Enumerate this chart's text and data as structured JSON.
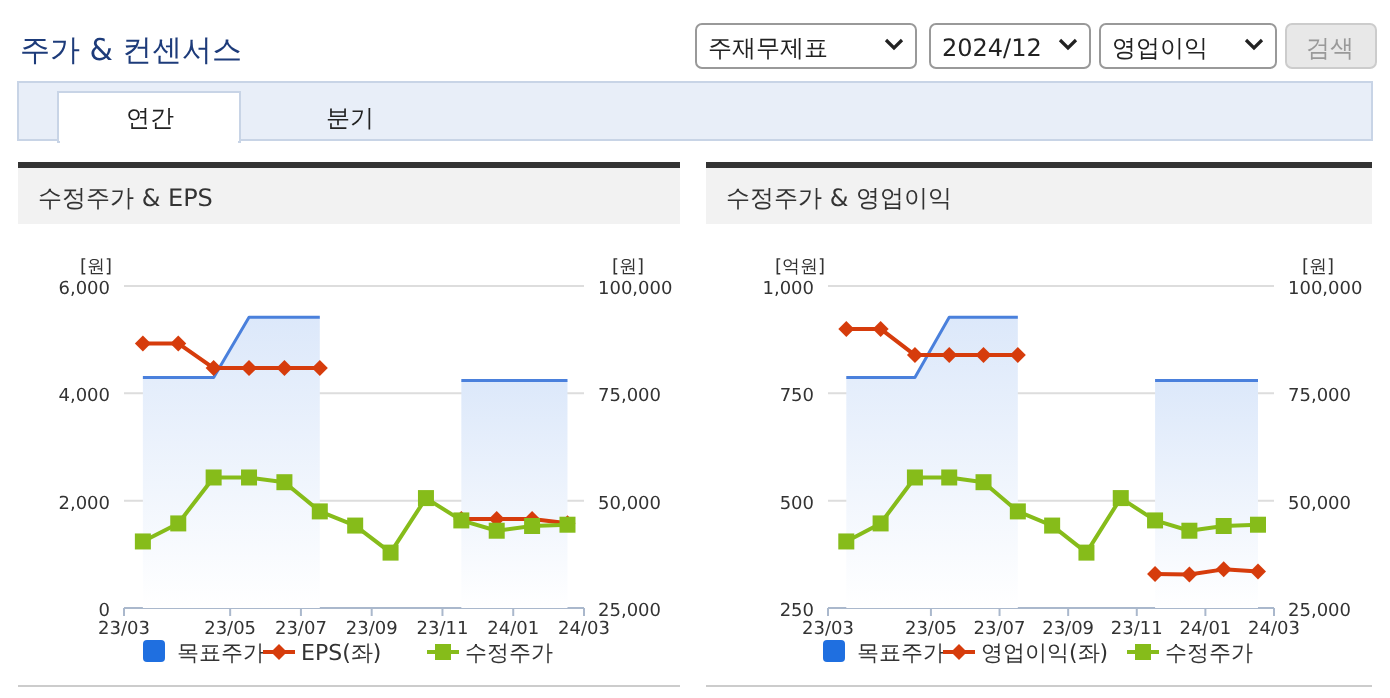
{
  "chart_data": [
    {
      "type": "other",
      "title": "주가 & 컨센서스",
      "annotations": [
        "주재무제표",
        "2024/12",
        "영업이익",
        "검색",
        "연간",
        "분기"
      ]
    },
    {
      "type": "line",
      "title": "수정주가 & EPS",
      "ylabel": "[원]",
      "y2label": "[원]",
      "x": [
        "2023-03",
        "2023-04",
        "2023-05",
        "2023-06",
        "2023-07",
        "2023-08",
        "2023-09",
        "2023-10",
        "2023-11",
        "2023-12",
        "2024-01",
        "2024-02",
        "2024-03"
      ],
      "xlim": [
        "2023-02-15",
        "2024-03-15"
      ],
      "xticks": [
        {
          "value": "2023-02-15",
          "label": "23/03"
        },
        {
          "value": "2023-05-15",
          "label": "23/05"
        },
        {
          "value": "2023-07-15",
          "label": "23/07"
        },
        {
          "value": "2023-09-15",
          "label": "23/09"
        },
        {
          "value": "2023-11-15",
          "label": "23/11"
        },
        {
          "value": "2024-01-15",
          "label": "24/01"
        },
        {
          "value": "2024-03-15",
          "label": "24/03"
        }
      ],
      "ylim": [
        0,
        6000
      ],
      "yticks": [
        {
          "value": 0,
          "label": "0"
        },
        {
          "value": 2000,
          "label": "2,000"
        },
        {
          "value": 4000,
          "label": "4,000"
        },
        {
          "value": 6000,
          "label": "6,000"
        }
      ],
      "y2lim": [
        25000,
        100000
      ],
      "y2ticks": [
        {
          "value": 25000,
          "label": "25,000"
        },
        {
          "value": 50000,
          "label": "50,000"
        },
        {
          "value": 75000,
          "label": "75,000"
        },
        {
          "value": 100000,
          "label": "100,000"
        }
      ],
      "grid": "y",
      "legend": "bottom",
      "series": [
        {
          "name": "목표주가",
          "type": "area",
          "axis": "y2",
          "color": "#4a80dc",
          "values": [
            78700,
            78700,
            78700,
            92700,
            92700,
            92700,
            null,
            null,
            null,
            78000,
            78000,
            78000,
            78000
          ]
        },
        {
          "name": "EPS(좌)",
          "type": "line",
          "color": "#d63c0c",
          "marker": "diamond",
          "values": [
            4930,
            4930,
            4470,
            4470,
            4470,
            4470,
            null,
            null,
            null,
            1660,
            1660,
            1660,
            1580
          ]
        },
        {
          "name": "수정주가",
          "type": "line",
          "axis": "y2",
          "color": "#86bc1a",
          "marker": "square",
          "values": [
            40500,
            44700,
            55400,
            55400,
            54300,
            47500,
            44200,
            37900,
            50600,
            45400,
            43000,
            44100,
            44400
          ]
        }
      ]
    },
    {
      "type": "line",
      "title": "수정주가 & 영업이익",
      "ylabel": "[억원]",
      "y2label": "[원]",
      "x": [
        "2023-03",
        "2023-04",
        "2023-05",
        "2023-06",
        "2023-07",
        "2023-08",
        "2023-09",
        "2023-10",
        "2023-11",
        "2023-12",
        "2024-01",
        "2024-02",
        "2024-03"
      ],
      "xlim": [
        "2023-02-15",
        "2024-03-15"
      ],
      "xticks": [
        {
          "value": "2023-02-15",
          "label": "23/03"
        },
        {
          "value": "2023-05-15",
          "label": "23/05"
        },
        {
          "value": "2023-07-15",
          "label": "23/07"
        },
        {
          "value": "2023-09-15",
          "label": "23/09"
        },
        {
          "value": "2023-11-15",
          "label": "23/11"
        },
        {
          "value": "2024-01-15",
          "label": "24/01"
        },
        {
          "value": "2024-03-15",
          "label": "24/03"
        }
      ],
      "ylim": [
        250,
        1000
      ],
      "yticks": [
        {
          "value": 250,
          "label": "250"
        },
        {
          "value": 500,
          "label": "500"
        },
        {
          "value": 750,
          "label": "750"
        },
        {
          "value": 1000,
          "label": "1,000"
        }
      ],
      "y2lim": [
        25000,
        100000
      ],
      "y2ticks": [
        {
          "value": 25000,
          "label": "25,000"
        },
        {
          "value": 50000,
          "label": "50,000"
        },
        {
          "value": 75000,
          "label": "75,000"
        },
        {
          "value": 100000,
          "label": "100,000"
        }
      ],
      "grid": "y",
      "legend": "bottom",
      "series": [
        {
          "name": "목표주가",
          "type": "area",
          "axis": "y2",
          "color": "#4a80dc",
          "values": [
            78700,
            78700,
            78700,
            92700,
            92700,
            92700,
            null,
            null,
            null,
            78000,
            78000,
            78000,
            78000
          ]
        },
        {
          "name": "영업이익(좌)",
          "type": "line",
          "color": "#d63c0c",
          "marker": "diamond",
          "values": [
            900,
            900,
            839,
            839,
            839,
            839,
            null,
            null,
            null,
            329,
            328,
            340,
            335
          ]
        },
        {
          "name": "수정주가",
          "type": "line",
          "axis": "y2",
          "color": "#86bc1a",
          "marker": "square",
          "values": [
            40500,
            44700,
            55400,
            55400,
            54300,
            47500,
            44200,
            37900,
            50600,
            45400,
            43000,
            44100,
            44400
          ]
        }
      ]
    }
  ]
}
